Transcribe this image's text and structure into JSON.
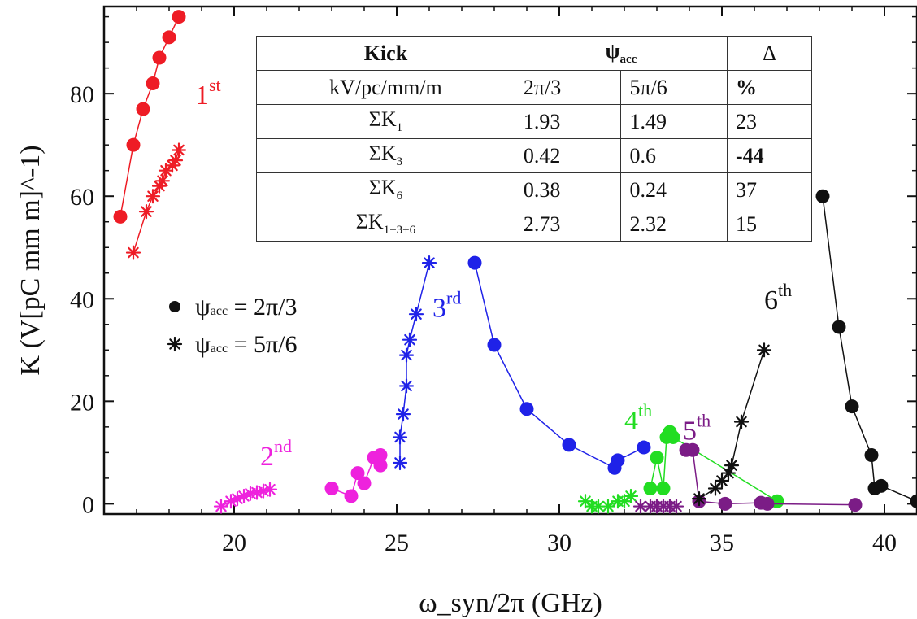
{
  "chart_data": {
    "type": "scatter",
    "xlabel": "ω_syn/2π (GHz)",
    "ylabel": "K (V[pC mm m]^-1)",
    "xlim": [
      16,
      41
    ],
    "ylim": [
      -2,
      97
    ],
    "xticks": [
      20,
      25,
      30,
      35,
      40
    ],
    "yticks": [
      0,
      20,
      40,
      60,
      80
    ],
    "grid": false,
    "legend": {
      "placement": "middle-left",
      "entries": [
        {
          "marker": "dot",
          "symbol": "ψ",
          "sub": "acc",
          "value": "= 2π/3"
        },
        {
          "marker": "star",
          "symbol": "ψ",
          "sub": "acc",
          "value": "= 5π/6"
        }
      ]
    },
    "series": [
      {
        "mode": "2π/3",
        "harmonic": "1st",
        "color": "#ee1c25",
        "marker": "dot",
        "x": [
          16.5,
          16.9,
          17.2,
          17.5,
          17.7,
          18.0,
          18.3
        ],
        "y": [
          56,
          70,
          77,
          82,
          87,
          91,
          95
        ]
      },
      {
        "mode": "5π/6",
        "harmonic": "1st",
        "color": "#ee1c25",
        "marker": "star",
        "x": [
          16.9,
          17.3,
          17.5,
          17.7,
          17.8,
          17.9,
          18.1,
          18.2,
          18.3
        ],
        "y": [
          49,
          57,
          60,
          62,
          63,
          65,
          66,
          67,
          69
        ]
      },
      {
        "mode": "2π/3",
        "harmonic": "2nd",
        "color": "#ee22dd",
        "marker": "dot",
        "x": [
          23.0,
          23.6,
          23.8,
          24.0,
          24.3,
          24.5,
          24.5
        ],
        "y": [
          3,
          1.5,
          6,
          4,
          9,
          9.5,
          7.5
        ]
      },
      {
        "mode": "5π/6",
        "harmonic": "2nd",
        "color": "#ee22dd",
        "marker": "star",
        "x": [
          19.6,
          19.9,
          20.1,
          20.3,
          20.5,
          20.7,
          20.9,
          21.1
        ],
        "y": [
          -0.5,
          0.5,
          1,
          1.5,
          2,
          2.2,
          2.5,
          2.8
        ]
      },
      {
        "mode": "2π/3",
        "harmonic": "3rd",
        "color": "#1f22e8",
        "marker": "dot",
        "x": [
          27.4,
          28.0,
          29.0,
          30.3,
          31.7,
          31.8,
          32.6
        ],
        "y": [
          47,
          31,
          18.5,
          11.5,
          7,
          8.5,
          11
        ]
      },
      {
        "mode": "5π/6",
        "harmonic": "3rd",
        "color": "#1f22e8",
        "marker": "star",
        "x": [
          25.1,
          25.1,
          25.2,
          25.3,
          25.3,
          25.4,
          25.6,
          26.0
        ],
        "y": [
          8,
          13,
          17.5,
          23,
          29,
          32,
          37,
          47
        ]
      },
      {
        "mode": "2π/3",
        "harmonic": "4th",
        "color": "#22dd22",
        "marker": "dot",
        "x": [
          32.8,
          33.0,
          33.2,
          33.3,
          33.4,
          33.5,
          36.7
        ],
        "y": [
          3,
          9,
          3,
          13,
          14,
          13,
          0.5
        ]
      },
      {
        "mode": "5π/6",
        "harmonic": "4th",
        "color": "#22dd22",
        "marker": "star",
        "x": [
          30.8,
          31.0,
          31.2,
          31.5,
          31.8,
          32.0,
          32.2
        ],
        "y": [
          0.5,
          -0.5,
          -0.5,
          -0.5,
          0.5,
          0.5,
          1.5
        ]
      },
      {
        "mode": "2π/3",
        "harmonic": "5th",
        "color": "#7b1c86",
        "marker": "dot",
        "x": [
          33.9,
          34.1,
          34.3,
          35.1,
          36.2,
          36.4,
          39.1
        ],
        "y": [
          10.5,
          10.5,
          0.5,
          0,
          0.2,
          0,
          -0.2
        ]
      },
      {
        "mode": "5π/6",
        "harmonic": "5th",
        "color": "#7b1c86",
        "marker": "star",
        "x": [
          32.5,
          32.8,
          33.0,
          33.2,
          33.4,
          33.6
        ],
        "y": [
          -0.5,
          -0.5,
          -0.5,
          -0.5,
          -0.5,
          -0.5
        ]
      },
      {
        "mode": "2π/3",
        "harmonic": "6th",
        "color": "#111111",
        "marker": "dot",
        "x": [
          38.1,
          38.6,
          39.0,
          39.6,
          39.7,
          39.9,
          41.0
        ],
        "y": [
          60,
          34.5,
          19,
          9.5,
          3,
          3.5,
          0.5
        ]
      },
      {
        "mode": "5π/6",
        "harmonic": "6th",
        "color": "#111111",
        "marker": "star",
        "x": [
          34.3,
          34.8,
          35.0,
          35.2,
          35.3,
          35.6,
          36.3
        ],
        "y": [
          1,
          3,
          4.5,
          6,
          7.5,
          16,
          30
        ]
      }
    ],
    "annotations": [
      {
        "base": "1",
        "sup": "st",
        "color": "#ee1c25",
        "x": 18.8,
        "y": 78
      },
      {
        "base": "2",
        "sup": "nd",
        "color": "#ee22dd",
        "x": 20.8,
        "y": 7.5
      },
      {
        "base": "3",
        "sup": "rd",
        "color": "#1f22e8",
        "x": 26.1,
        "y": 36.5
      },
      {
        "base": "4",
        "sup": "th",
        "color": "#22dd22",
        "x": 32.0,
        "y": 14.5
      },
      {
        "base": "5",
        "sup": "th",
        "color": "#7b1c86",
        "x": 33.8,
        "y": 12.5
      },
      {
        "base": "6",
        "sup": "th",
        "color": "#111111",
        "x": 36.3,
        "y": 38
      }
    ]
  },
  "table": {
    "header": {
      "kick": "Kick",
      "psi": "ψ",
      "psi_sub": "acc",
      "delta": "Δ"
    },
    "unit_row": {
      "unit": "kV/pc/mm/m",
      "col1": "2π/3",
      "col2": "5π/6",
      "col3": "%"
    },
    "rows": [
      {
        "sym": "ΣK",
        "sub": "1",
        "v1": "1.93",
        "v2": "1.49",
        "d": "23"
      },
      {
        "sym": "ΣK",
        "sub": "3",
        "v1": "0.42",
        "v2": "0.6",
        "d": "-44"
      },
      {
        "sym": "ΣK",
        "sub": "6",
        "v1": "0.38",
        "v2": "0.24",
        "d": "37"
      },
      {
        "sym": "ΣK",
        "sub": "1+3+6",
        "v1": "2.73",
        "v2": "2.32",
        "d": "15"
      }
    ]
  }
}
